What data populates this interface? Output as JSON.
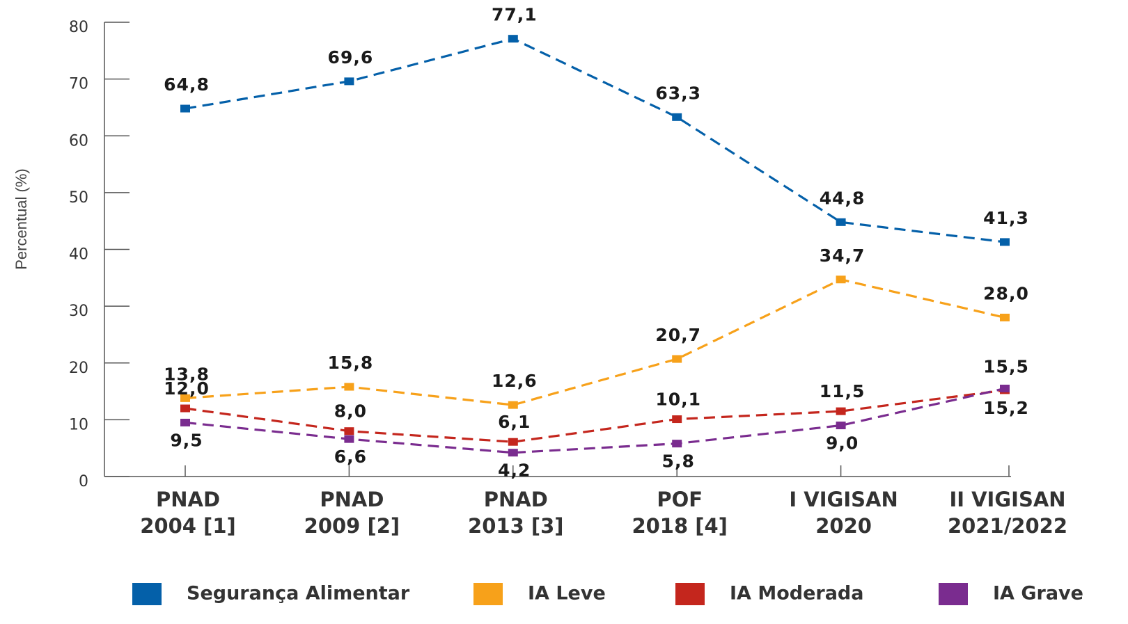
{
  "chart_data": {
    "type": "line",
    "y_label": "Percentual (%)",
    "categories": [
      [
        "PNAD",
        "2004 [1]"
      ],
      [
        "PNAD",
        "2009 [2]"
      ],
      [
        "PNAD",
        "2013 [3]"
      ],
      [
        "POF",
        "2018 [4]"
      ],
      [
        "I VIGISAN",
        "2020"
      ],
      [
        "II VIGISAN",
        "2021/2022"
      ]
    ],
    "ylim": [
      0,
      80
    ],
    "yticks": [
      0,
      10,
      20,
      30,
      40,
      50,
      60,
      70,
      80
    ],
    "legend": "bottom",
    "series": [
      {
        "name": "Segurança Alimentar",
        "color": "#0460a9",
        "values": [
          64.8,
          69.6,
          77.1,
          63.3,
          44.8,
          41.3
        ],
        "value_labels": [
          "64,8",
          "69,6",
          "77,1",
          "63,3",
          "44,8",
          "41,3"
        ]
      },
      {
        "name": "IA Leve",
        "color": "#f7a11a",
        "values": [
          13.8,
          15.8,
          12.6,
          20.7,
          34.7,
          28.0
        ],
        "value_labels": [
          "13,8",
          "15,8",
          "12,6",
          "20,7",
          "34,7",
          "28,0"
        ]
      },
      {
        "name": "IA Moderada",
        "color": "#c4261d",
        "values": [
          12.0,
          8.0,
          6.1,
          10.1,
          11.5,
          15.2
        ],
        "value_labels": [
          "12,0",
          "8,0",
          "6,1",
          "10,1",
          "11,5",
          "15,2"
        ]
      },
      {
        "name": "IA Grave",
        "color": "#7a2c8f",
        "values": [
          9.5,
          6.6,
          4.2,
          5.8,
          9.0,
          15.5
        ],
        "value_labels": [
          "9,5",
          "6,6",
          "4,2",
          "5,8",
          "9,0",
          "15,5"
        ]
      }
    ]
  }
}
